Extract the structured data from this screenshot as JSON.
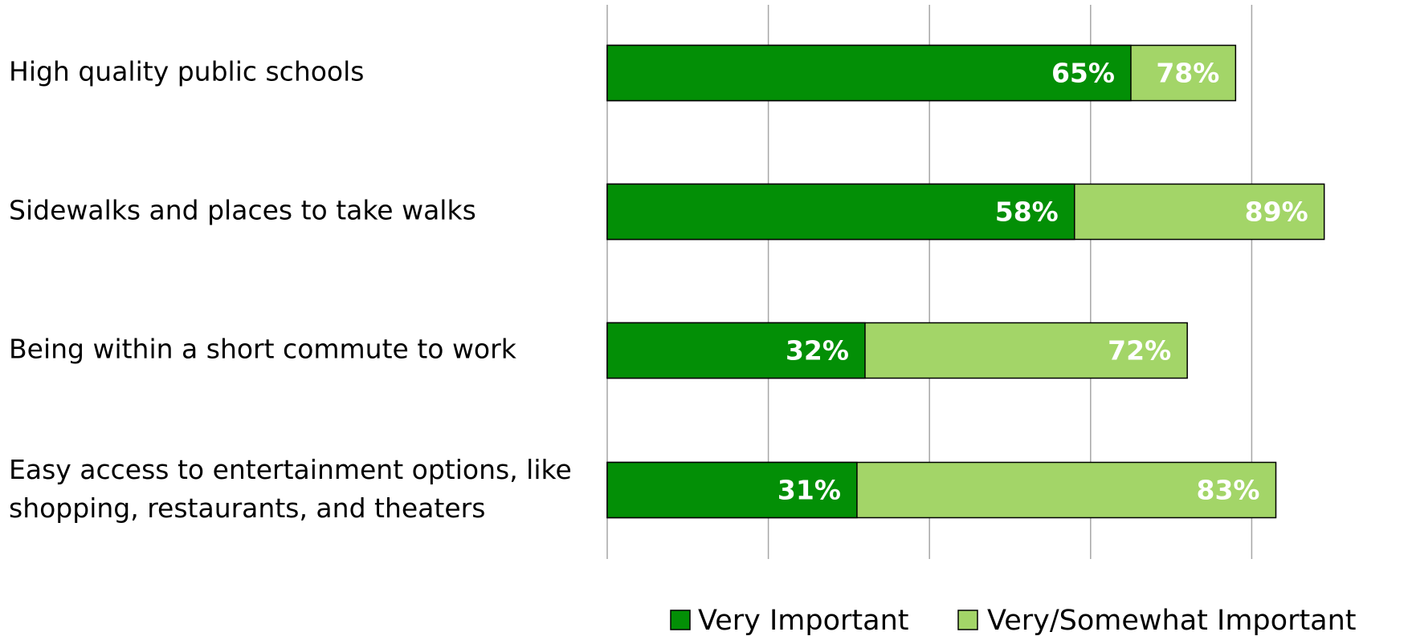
{
  "chart_data": {
    "type": "bar",
    "orientation": "horizontal",
    "overlap": true,
    "categories": [
      "High quality public schools",
      "Sidewalks and places to take walks",
      "Being within a short commute to work",
      "Easy access to entertainment options, like shopping, restaurants, and theaters"
    ],
    "series": [
      {
        "name": "Very/Somewhat Important",
        "color": "#a3d568",
        "values": [
          78,
          89,
          72,
          83
        ],
        "value_labels": [
          "78%",
          "89%",
          "72%",
          "83%"
        ]
      },
      {
        "name": "Very Important",
        "color": "#038f06",
        "values": [
          65,
          58,
          32,
          31
        ],
        "value_labels": [
          "65%",
          "58%",
          "32%",
          "31%"
        ]
      }
    ],
    "xlim": [
      0,
      100
    ],
    "xticks": [
      0,
      20,
      40,
      60,
      80
    ],
    "grid": true
  }
}
